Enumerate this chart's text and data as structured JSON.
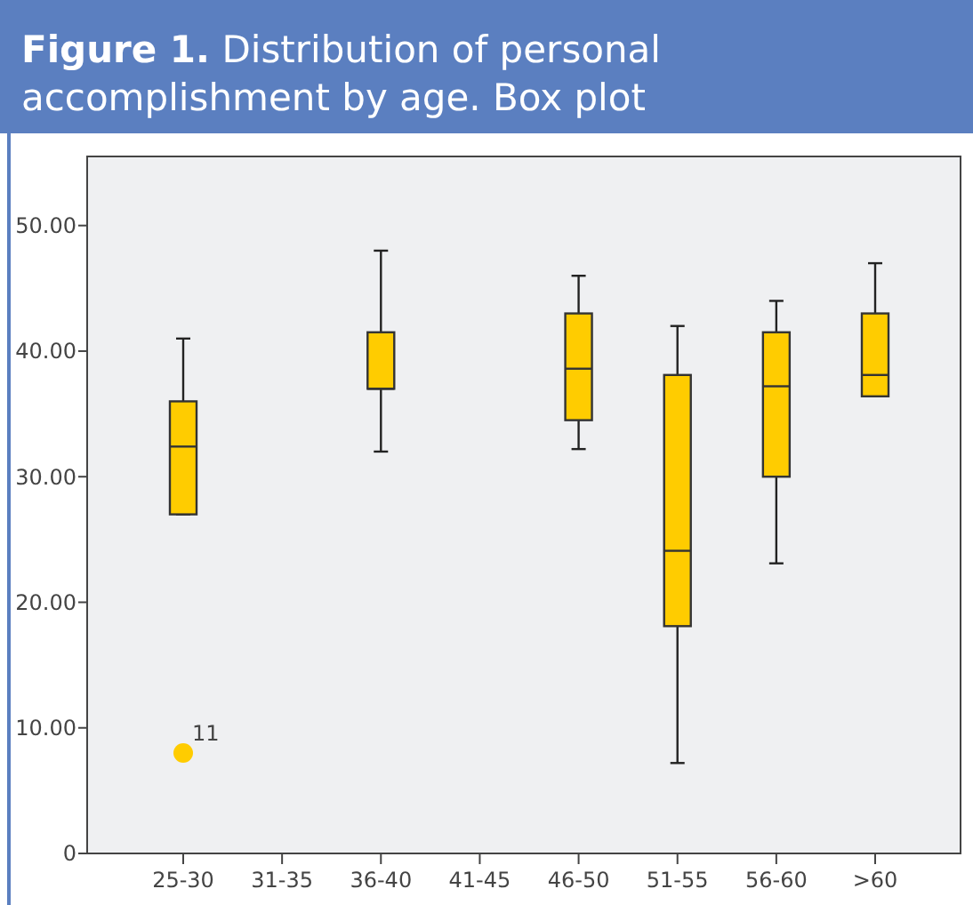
{
  "chart_data": {
    "type": "box",
    "title": "Figure 1. Distribution of personal accomplishment by age. Box plot",
    "categories": [
      "25-30",
      "31-35",
      "36-40",
      "41-45",
      "46-50",
      "51-55",
      "56-60",
      ">60"
    ],
    "boxes": [
      {
        "low": 27,
        "q1": 27,
        "median": 32.4,
        "q3": 36,
        "high": 41,
        "outliers": [
          8
        ]
      },
      null,
      {
        "low": 32,
        "q1": 37,
        "median": 37,
        "q3": 41.5,
        "high": 48
      },
      null,
      {
        "low": 32.2,
        "q1": 34.5,
        "median": 38.6,
        "q3": 43,
        "high": 46
      },
      {
        "low": 7.2,
        "q1": 18.1,
        "median": 24.1,
        "q3": 38.1,
        "high": 42
      },
      {
        "low": 23.1,
        "q1": 30,
        "median": 37.2,
        "q3": 41.5,
        "high": 44
      },
      {
        "low": 36.4,
        "q1": 36.4,
        "median": 38.1,
        "q3": 43,
        "high": 47
      }
    ],
    "color": "#ffcc00",
    "ylim": [
      0,
      55.5
    ],
    "yticks": [
      {
        "value": 0,
        "label": "0"
      },
      {
        "value": 10,
        "label": "10.00"
      },
      {
        "value": 20,
        "label": "20.00"
      },
      {
        "value": 30,
        "label": "30.00"
      },
      {
        "value": 40,
        "label": "40.00"
      },
      {
        "value": 50,
        "label": "50.00"
      }
    ],
    "annotations": [
      "11"
    ],
    "grid": false
  }
}
